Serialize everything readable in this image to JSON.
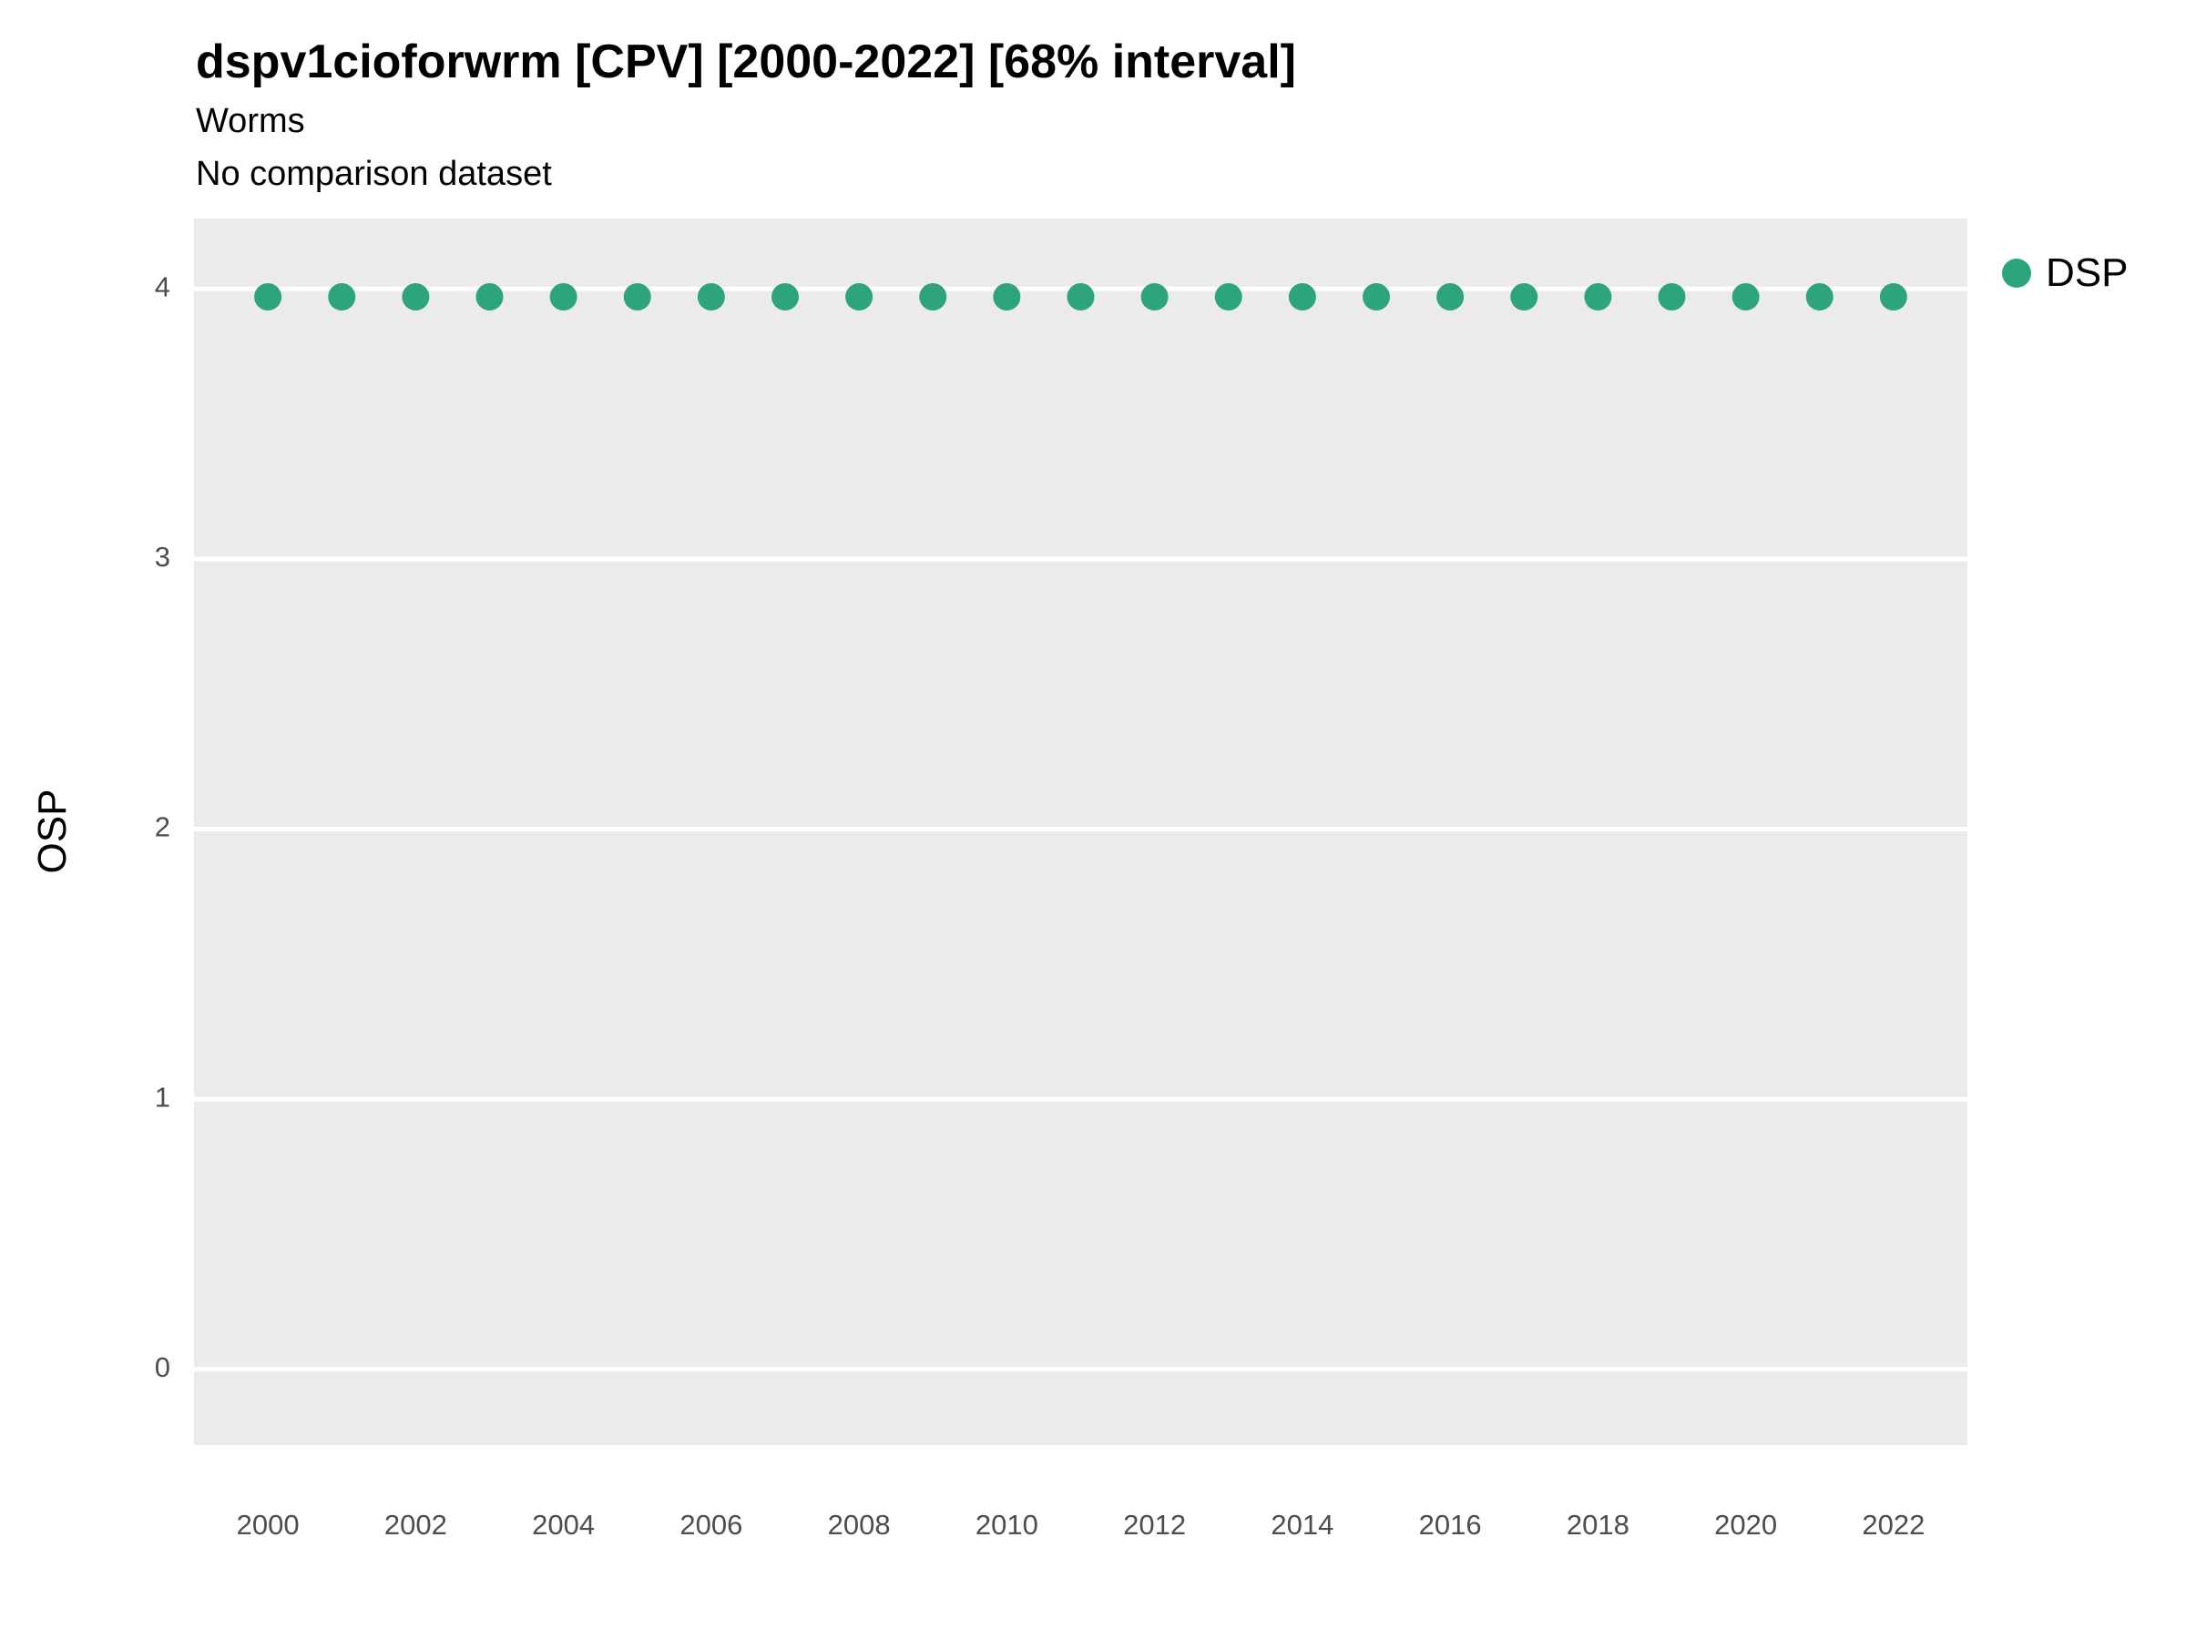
{
  "header": {
    "title": "dspv1cioforwrm [CPV] [2000-2022] [68% interval]",
    "subtitle": "Worms",
    "note": "No comparison dataset"
  },
  "y_axis_title": "OSP",
  "legend": {
    "position": "right",
    "items": [
      {
        "label": "DSP",
        "color": "#2DA47E"
      }
    ]
  },
  "chart_data": {
    "type": "scatter",
    "title": "dspv1cioforwrm [CPV] [2000-2022] [68% interval]",
    "subtitle": "Worms",
    "note": "No comparison dataset",
    "xlabel": "",
    "ylabel": "OSP",
    "x": [
      2000,
      2001,
      2002,
      2003,
      2004,
      2005,
      2006,
      2007,
      2008,
      2009,
      2010,
      2011,
      2012,
      2013,
      2014,
      2015,
      2016,
      2017,
      2018,
      2019,
      2020,
      2021,
      2022
    ],
    "series": [
      {
        "name": "DSP",
        "color": "#2DA47E",
        "values": [
          3.97,
          3.97,
          3.97,
          3.97,
          3.97,
          3.97,
          3.97,
          3.97,
          3.97,
          3.97,
          3.97,
          3.97,
          3.97,
          3.97,
          3.97,
          3.97,
          3.97,
          3.97,
          3.97,
          3.97,
          3.97,
          3.97,
          3.97
        ]
      }
    ],
    "xticks": [
      2000,
      2002,
      2004,
      2006,
      2008,
      2010,
      2012,
      2014,
      2016,
      2018,
      2020,
      2022
    ],
    "yticks": [
      0,
      1,
      2,
      3,
      4
    ],
    "xlim": [
      1999,
      2023
    ],
    "ylim": [
      -0.28,
      4.26
    ],
    "grid": "major-horizontal",
    "panel_bg": "#EBEBEB",
    "grid_color": "#FFFFFF",
    "legend_position": "right"
  }
}
